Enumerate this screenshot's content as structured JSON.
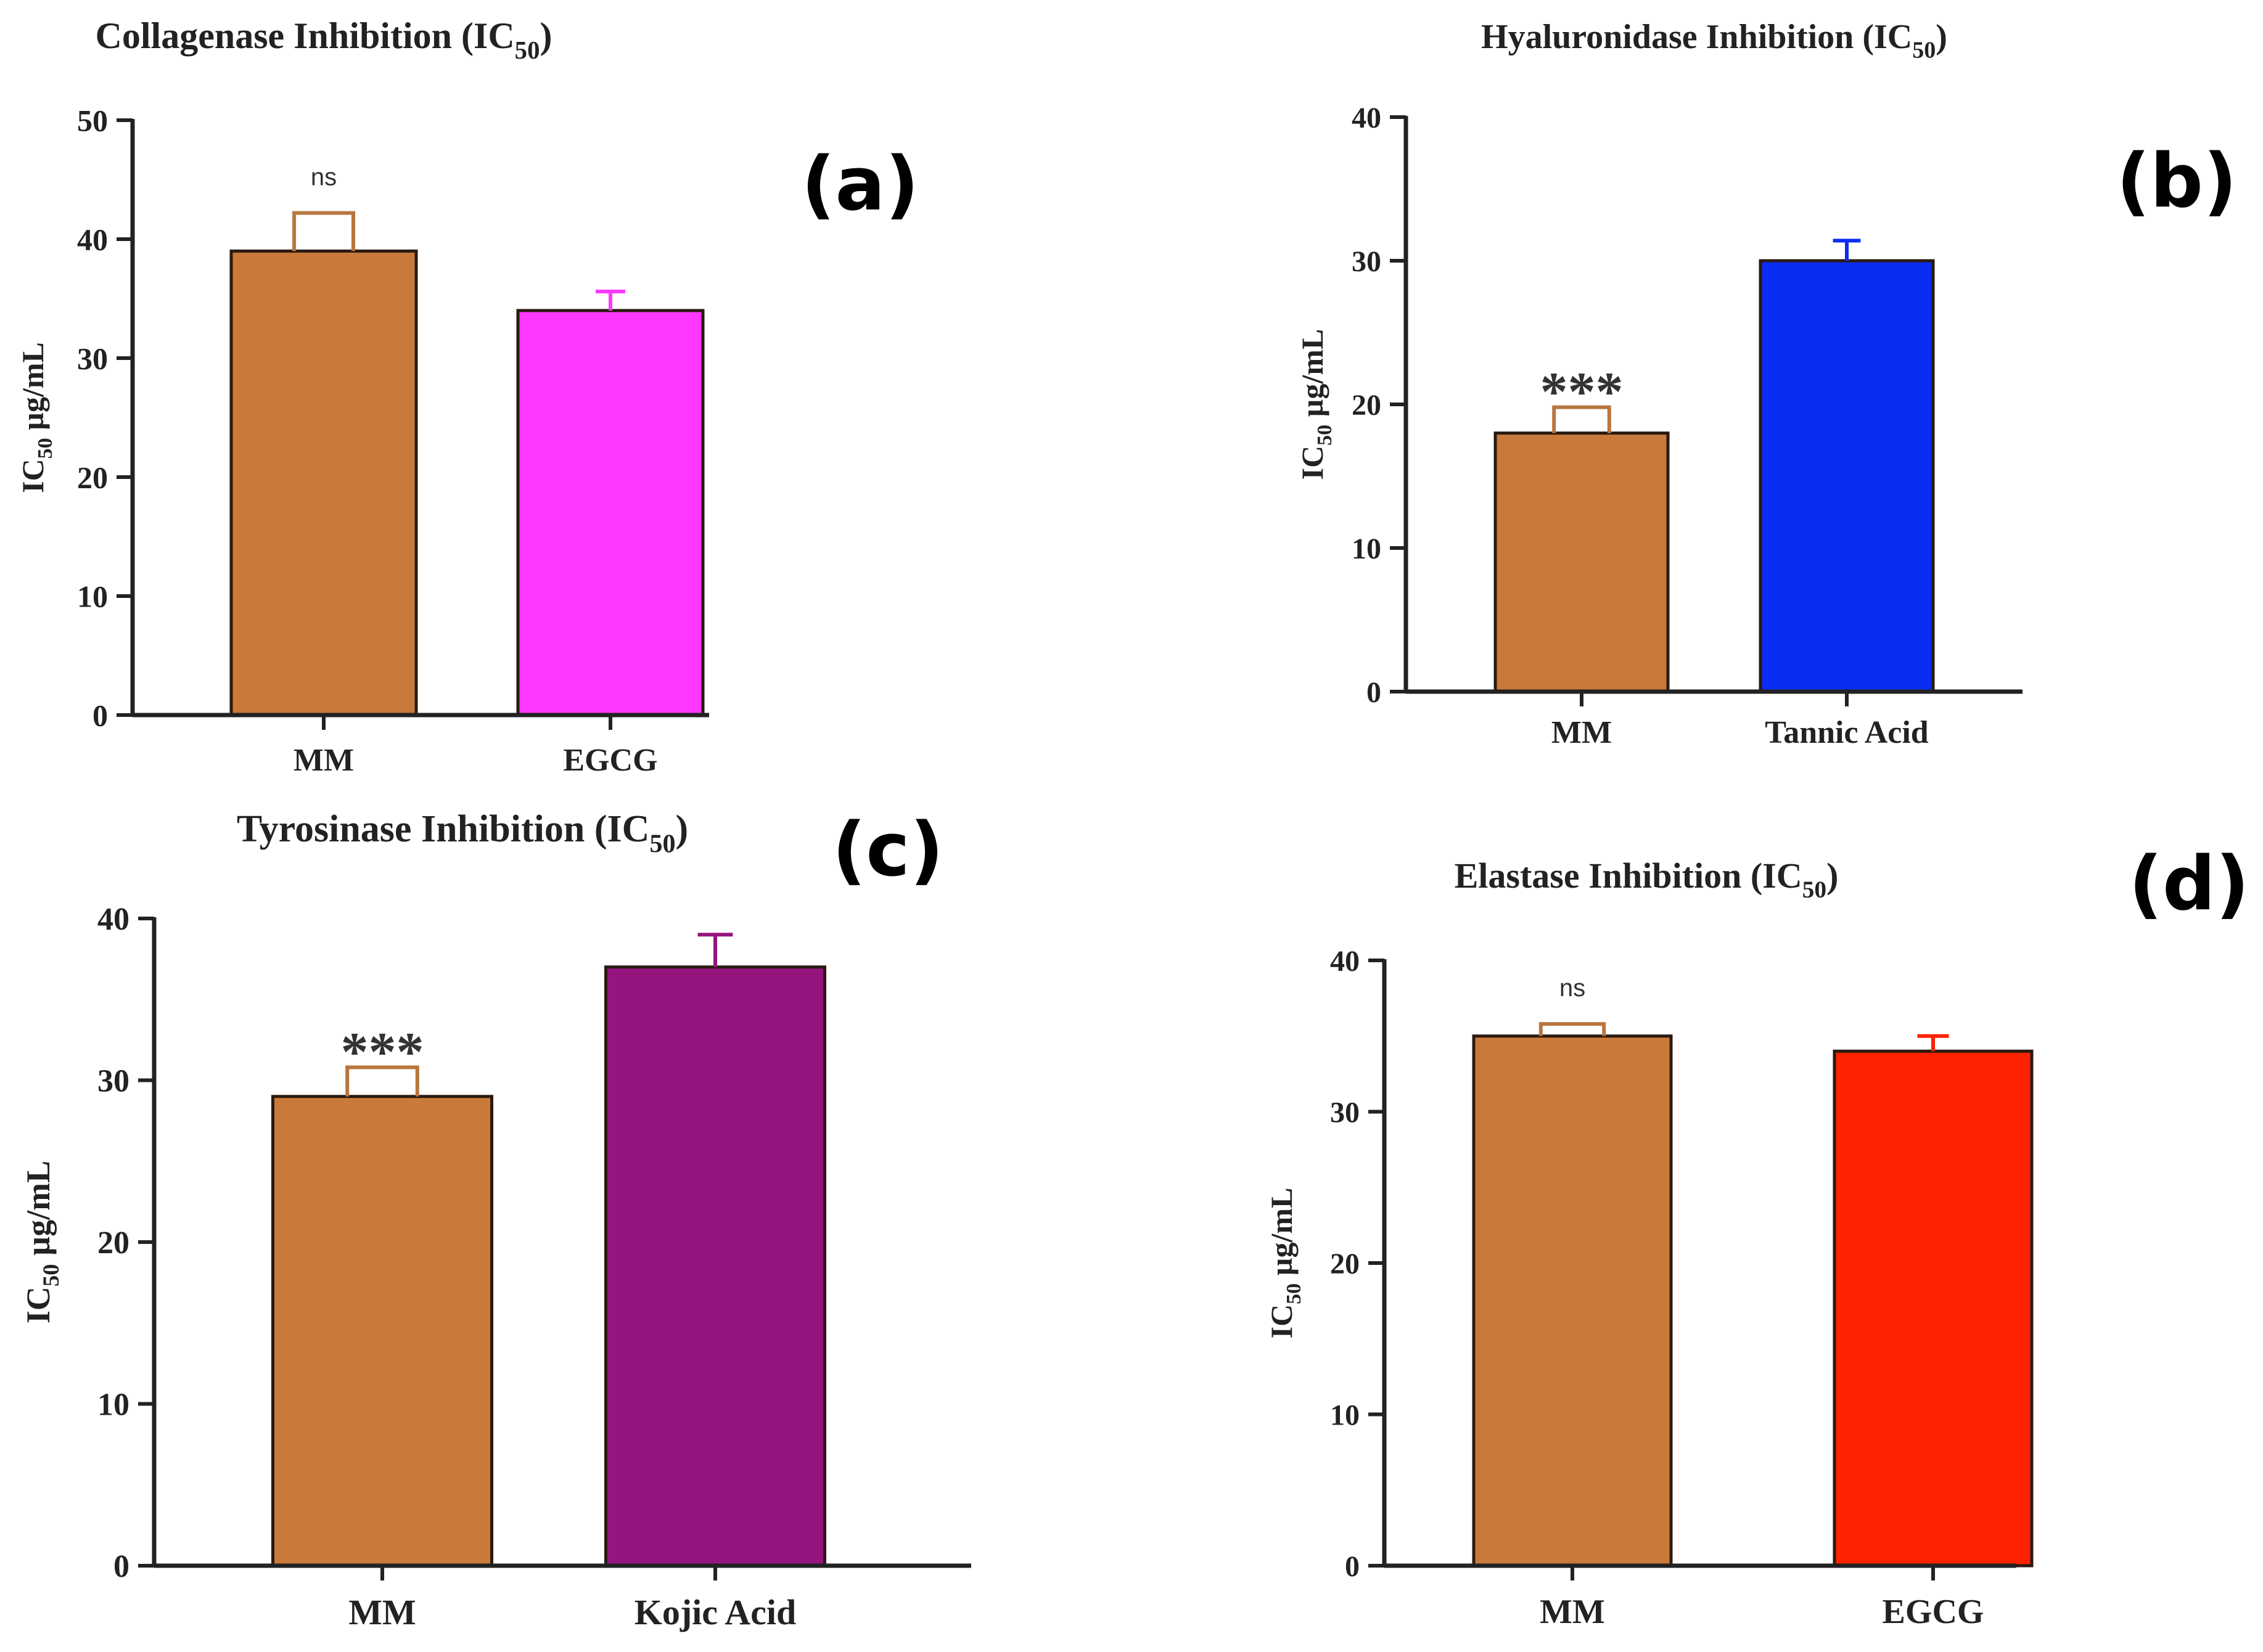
{
  "chart_data": [
    {
      "type": "bar",
      "panel_label": "(a)",
      "title": "Collagenase Inhibition (IC",
      "title_subscript": "50",
      "title_suffix": ")",
      "ylabel_main": "IC",
      "ylabel_sub": "50",
      "ylabel_unit": " µg/mL",
      "xlabel": "",
      "ylim": [
        0,
        50
      ],
      "yticks": [
        0,
        10,
        20,
        30,
        40,
        50
      ],
      "categories": [
        "MM",
        "EGCG"
      ],
      "values": [
        39,
        34
      ],
      "errors": [
        3.2,
        1.6
      ],
      "colors": [
        "#c97a3a",
        "#ff38ff"
      ],
      "error_colors": [
        "#b8763f",
        "#ff38ff"
      ],
      "significance": "ns"
    },
    {
      "type": "bar",
      "panel_label": "(b)",
      "title": "Hyaluronidase Inhibition (IC",
      "title_subscript": "50",
      "title_suffix": ")",
      "ylabel_main": "IC",
      "ylabel_sub": "50",
      "ylabel_unit": " µg/mL",
      "xlabel": "",
      "ylim": [
        0,
        40
      ],
      "yticks": [
        0,
        10,
        20,
        30,
        40
      ],
      "categories": [
        "MM",
        "Tannic Acid"
      ],
      "values": [
        18,
        30
      ],
      "errors": [
        1.8,
        1.4
      ],
      "colors": [
        "#c97a3a",
        "#0b2cf2"
      ],
      "error_colors": [
        "#b8763f",
        "#0b2cf2"
      ],
      "significance": "***"
    },
    {
      "type": "bar",
      "panel_label": "(c)",
      "title": "Tyrosinase Inhibition (IC",
      "title_subscript": "50",
      "title_suffix": ")",
      "ylabel_main": "IC",
      "ylabel_sub": "50",
      "ylabel_unit": " µg/mL",
      "xlabel": "",
      "ylim": [
        0,
        40
      ],
      "yticks": [
        0,
        10,
        20,
        30,
        40
      ],
      "categories": [
        "MM",
        "Kojic Acid"
      ],
      "values": [
        29,
        37
      ],
      "errors": [
        1.8,
        2.0
      ],
      "colors": [
        "#c97a3a",
        "#94157e"
      ],
      "error_colors": [
        "#b8763f",
        "#94157e"
      ],
      "significance": "***"
    },
    {
      "type": "bar",
      "panel_label": "(d)",
      "title": "Elastase Inhibition (IC",
      "title_subscript": "50",
      "title_suffix": ")",
      "ylabel_main": "IC",
      "ylabel_sub": "50",
      "ylabel_unit": " µg/mL",
      "xlabel": "",
      "ylim": [
        0,
        40
      ],
      "yticks": [
        0,
        10,
        20,
        30,
        40
      ],
      "categories": [
        "MM",
        "EGCG"
      ],
      "values": [
        35,
        34
      ],
      "errors": [
        0.8,
        1.0
      ],
      "colors": [
        "#c97a3a",
        "#ff2200"
      ],
      "error_colors": [
        "#b8763f",
        "#ff2200"
      ],
      "significance": "ns"
    }
  ]
}
